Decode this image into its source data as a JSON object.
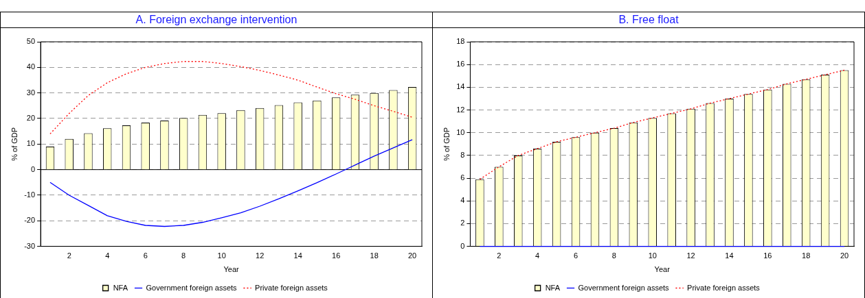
{
  "chart_data": [
    {
      "type": "bar",
      "title": "A. Foreign exchange intervention",
      "xlabel": "Year",
      "ylabel": "% of GDP",
      "categories": [
        null,
        "2",
        null,
        "4",
        null,
        "6",
        null,
        "8",
        null,
        "10",
        null,
        "12",
        null,
        "14",
        null,
        "16",
        null,
        "18",
        null,
        "20"
      ],
      "series": [
        {
          "name": "NFA",
          "type": "bar",
          "color": "#ffffcc",
          "values": [
            9,
            12,
            14.2,
            16.2,
            17.3,
            18.4,
            19.2,
            20.2,
            21.4,
            22.1,
            23.3,
            24.1,
            25.2,
            26.3,
            27,
            28.2,
            29.3,
            30,
            31.1,
            32.3
          ]
        },
        {
          "name": "Government foreign assets",
          "type": "line",
          "color": "#0000ff",
          "line_style": "solid",
          "values": [
            -5,
            -10,
            -14,
            -18,
            -20.2,
            -21.8,
            -22.2,
            -21.8,
            -20.6,
            -18.8,
            -16.9,
            -14.3,
            -11.4,
            -8.3,
            -5.1,
            -1.7,
            1.8,
            5.3,
            8.5,
            11.7
          ]
        },
        {
          "name": "Private foreign assets",
          "type": "line",
          "color": "#ff0000",
          "line_style": "dotted",
          "values": [
            14,
            22,
            29,
            34,
            37.5,
            40,
            41.5,
            42.3,
            42.3,
            41.5,
            40.3,
            38.8,
            37,
            35,
            32.3,
            29.7,
            27.5,
            25,
            22.8,
            20.5
          ]
        }
      ],
      "ylim": [
        -30,
        50
      ],
      "yticks": [
        -30,
        -20,
        -10,
        0,
        10,
        20,
        30,
        40,
        50
      ],
      "grid": "y",
      "legend": "bottom",
      "marker": "none"
    },
    {
      "type": "bar",
      "title": "B. Free float",
      "xlabel": "Year",
      "ylabel": "% of GDP",
      "categories": [
        null,
        "2",
        null,
        "4",
        null,
        "6",
        null,
        "8",
        null,
        "10",
        null,
        "12",
        null,
        "14",
        null,
        "16",
        null,
        "18",
        null,
        "20"
      ],
      "series": [
        {
          "name": "NFA",
          "type": "bar",
          "color": "#ffffcc",
          "values": [
            5.9,
            7,
            8,
            8.6,
            9.2,
            9.6,
            10,
            10.4,
            10.9,
            11.3,
            11.7,
            12.1,
            12.6,
            13,
            13.4,
            13.8,
            14.3,
            14.7,
            15.1,
            15.5
          ]
        },
        {
          "name": "Government foreign assets",
          "type": "line",
          "color": "#0000ff",
          "line_style": "solid",
          "values": [
            0,
            0,
            0,
            0,
            0,
            0,
            0,
            0,
            0,
            0,
            0,
            0,
            0,
            0,
            0,
            0,
            0,
            0,
            0,
            0
          ]
        },
        {
          "name": "Private foreign assets",
          "type": "line",
          "color": "#ff0000",
          "line_style": "dotted",
          "values": [
            5.9,
            7,
            8,
            8.6,
            9.2,
            9.6,
            10,
            10.4,
            10.9,
            11.3,
            11.7,
            12.1,
            12.6,
            13,
            13.4,
            13.8,
            14.3,
            14.7,
            15.1,
            15.5
          ]
        }
      ],
      "ylim": [
        0,
        18
      ],
      "yticks": [
        0,
        2,
        4,
        6,
        8,
        10,
        12,
        14,
        16,
        18
      ],
      "grid": "y",
      "legend": "bottom",
      "marker": "none"
    }
  ]
}
